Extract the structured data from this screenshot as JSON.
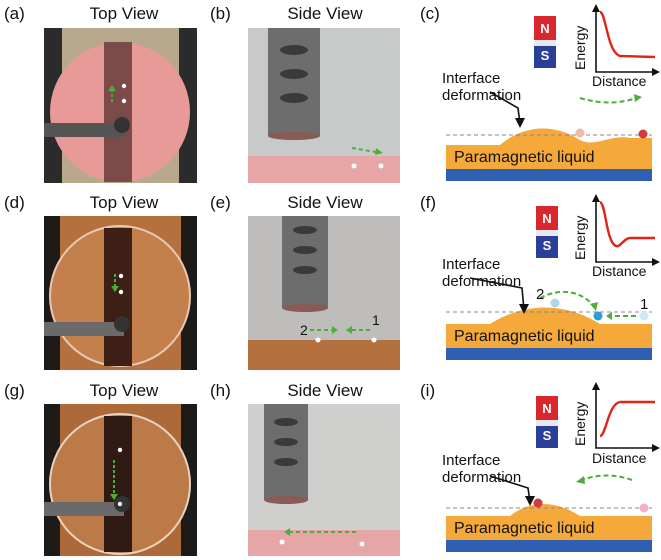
{
  "rows": [
    {
      "top": {
        "label": "(a)",
        "title": "Top View"
      },
      "side": {
        "label": "(b)",
        "title": "Side View",
        "markers": []
      },
      "schematic": {
        "label": "(c)",
        "n": "N",
        "s": "S",
        "axis_y": "Energy",
        "axis_x": "Distance",
        "interface": "Interface deformation",
        "liquid": "Paramagnetic liquid",
        "markers": []
      }
    },
    {
      "top": {
        "label": "(d)",
        "title": "Top View"
      },
      "side": {
        "label": "(e)",
        "title": "Side View",
        "markers": [
          "2",
          "1"
        ]
      },
      "schematic": {
        "label": "(f)",
        "n": "N",
        "s": "S",
        "axis_y": "Energy",
        "axis_x": "Distance",
        "interface": "Interface deformation",
        "liquid": "Paramagnetic liquid",
        "markers": [
          "2",
          "1"
        ]
      }
    },
    {
      "top": {
        "label": "(g)",
        "title": "Top View"
      },
      "side": {
        "label": "(h)",
        "title": "Side View",
        "markers": []
      },
      "schematic": {
        "label": "(i)",
        "n": "N",
        "s": "S",
        "axis_y": "Energy",
        "axis_x": "Distance",
        "interface": "Interface deformation",
        "liquid": "Paramagnetic liquid",
        "markers": []
      }
    }
  ],
  "colors": {
    "liquid": "#f4a93a",
    "substrate": "#2e5fb3",
    "arrow": "#4caf3a",
    "curve": "#e02418",
    "north": "#d9272e",
    "south": "#2a3f97"
  }
}
